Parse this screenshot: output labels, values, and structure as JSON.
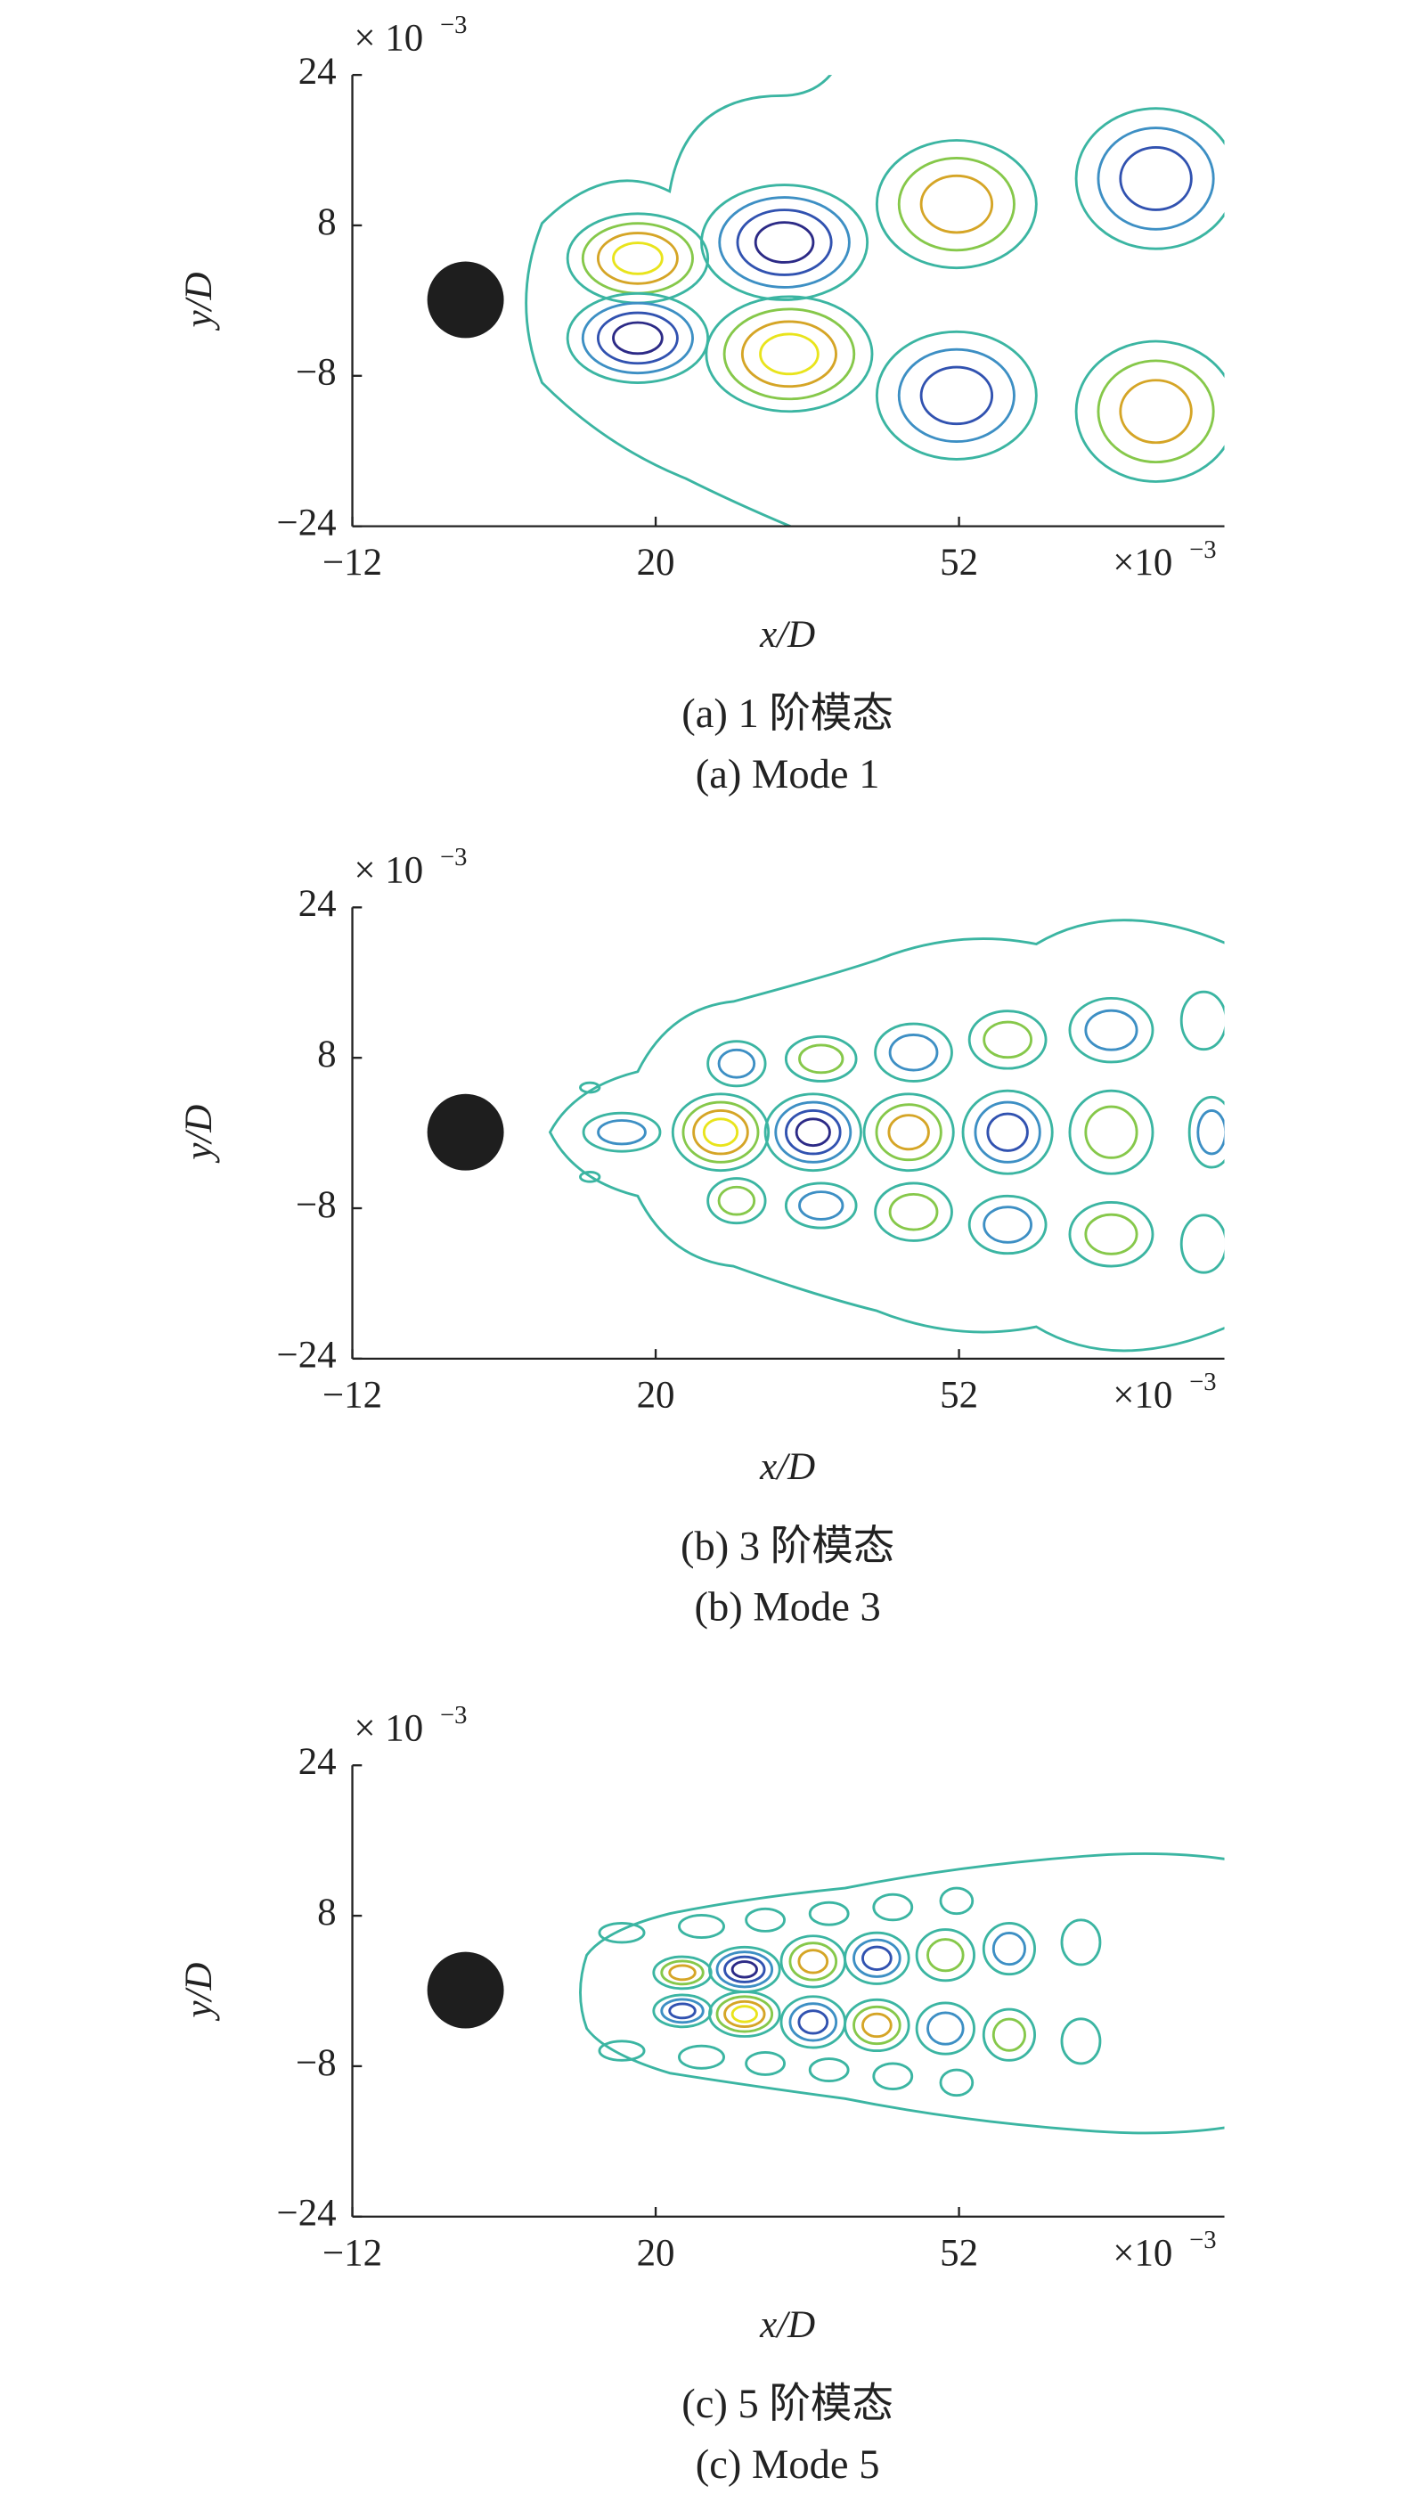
{
  "chart_data": [
    {
      "type": "contour",
      "xlabel": "x/D",
      "ylabel": "y/D",
      "x_scale": {
        "base": "×10",
        "exponent": "−3"
      },
      "y_scale": {
        "base": "× 10",
        "exponent": "−3"
      },
      "xlim": [
        -12,
        80
      ],
      "ylim": [
        -24,
        24
      ],
      "xticks": [
        {
          "value": -12,
          "label": "−12"
        },
        20,
        52
      ],
      "yticks": [
        {
          "value": -24,
          "label": "−24"
        },
        {
          "value": -8,
          "label": "−8"
        },
        8,
        24
      ],
      "caption_cn": "(a) 1 阶模态",
      "caption_en": "(a) Mode 1"
    },
    {
      "type": "contour",
      "xlabel": "x/D",
      "ylabel": "y/D",
      "x_scale": {
        "base": "×10",
        "exponent": "−3"
      },
      "y_scale": {
        "base": "× 10",
        "exponent": "−3"
      },
      "xlim": [
        -12,
        80
      ],
      "ylim": [
        -24,
        24
      ],
      "xticks": [
        {
          "value": -12,
          "label": "−12"
        },
        20,
        52
      ],
      "yticks": [
        {
          "value": -24,
          "label": "−24"
        },
        {
          "value": -8,
          "label": "−8"
        },
        8,
        24
      ],
      "caption_cn": "(b) 3 阶模态",
      "caption_en": "(b) Mode 3"
    },
    {
      "type": "contour",
      "xlabel": "x/D",
      "ylabel": "y/D",
      "x_scale": {
        "base": "×10",
        "exponent": "−3"
      },
      "y_scale": {
        "base": "× 10",
        "exponent": "−3"
      },
      "xlim": [
        -12,
        80
      ],
      "ylim": [
        -24,
        24
      ],
      "xticks": [
        {
          "value": -12,
          "label": "−12"
        },
        20,
        52
      ],
      "yticks": [
        {
          "value": -24,
          "label": "−24"
        },
        {
          "value": -8,
          "label": "−8"
        },
        8,
        24
      ],
      "caption_cn": "(c) 5 阶模态",
      "caption_en": "(c) Mode 5"
    }
  ]
}
